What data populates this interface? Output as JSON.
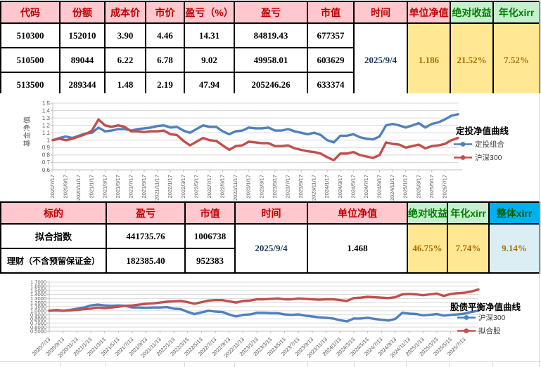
{
  "table1": {
    "headers": {
      "code": "代码",
      "shares": "份额",
      "cost": "成本价",
      "price": "市价",
      "pl_pct": "盈亏（%）",
      "pl": "盈亏",
      "mv": "市值",
      "time": "时间",
      "nav": "单位净值",
      "abs_return": "绝对收益",
      "xirr": "年化xirr"
    },
    "rows": [
      {
        "code": "510300",
        "shares": "152010",
        "cost": "3.90",
        "price": "4.46",
        "pl_pct": "14.31",
        "pl": "84819.43",
        "mv": "677357"
      },
      {
        "code": "510500",
        "shares": "89044",
        "cost": "6.22",
        "price": "6.78",
        "pl_pct": "9.02",
        "pl": "49958.01",
        "mv": "603629"
      },
      {
        "code": "513500",
        "shares": "289344",
        "cost": "1.48",
        "price": "2.19",
        "pl_pct": "47.94",
        "pl": "205246.26",
        "mv": "633374"
      }
    ],
    "time": "2025/9/4",
    "nav": "1.186",
    "abs_return": "21.52%",
    "xirr": "7.52%"
  },
  "table2": {
    "headers": {
      "target": "标的",
      "pl": "盈亏",
      "mv": "市值",
      "time": "时间",
      "nav": "单位净值",
      "abs_return": "绝对收益",
      "xirr": "年化xirr",
      "overall_xirr": "整体xirr"
    },
    "rows": [
      {
        "target": "拟合指数",
        "pl": "441735.76",
        "mv": "1006738"
      },
      {
        "target": "理财（不含预留保证金）",
        "pl": "182385.40",
        "mv": "952383"
      }
    ],
    "time": "2025/9/4",
    "nav": "1.468",
    "abs_return": "46.75%",
    "xirr": "7.74%",
    "overall_xirr": "9.14%"
  },
  "colors": {
    "header_pink": "#FFC7CE",
    "header_red_text": "#C00000",
    "green_bg": "#C6EFCE",
    "green_text": "#008000",
    "yellow_bg": "#FFE793",
    "yellow_text": "#A66E00",
    "blue_header_bg": "#00B0F0",
    "blue_cell_bg": "#DAEEF3",
    "line_blue": "#4F81BD",
    "line_red": "#C0504D",
    "grid_gray": "#D9D9D9",
    "axis_gray": "#BFBFBF",
    "tick_text": "#595959"
  },
  "chart_data": [
    {
      "type": "line",
      "title": "定投净值曲线",
      "ylabel": "基金净值",
      "ylim": [
        0.6,
        1.5
      ],
      "grid": true,
      "legend_position": "right",
      "ytick_values": [
        1.5,
        1.4,
        1.3,
        1.2,
        1.1,
        1.0,
        0.9,
        0.8,
        0.7,
        0.6
      ],
      "ytick_labels": [
        "1.5",
        "1.4",
        "1.3",
        "1.2",
        "1.1",
        "1",
        "0.9",
        "0.8",
        "0.7",
        "0.6"
      ],
      "categories": [
        "2020/7/17",
        "2020/9/17",
        "2020/11/17",
        "2021/1/17",
        "2021/3/17",
        "2021/5/17",
        "2021/7/17",
        "2021/9/17",
        "2021/11/17",
        "2022/1/17",
        "2022/3/17",
        "2022/5/17",
        "2022/7/17",
        "2022/9/17",
        "2022/11/17",
        "2023/1/17",
        "2023/3/17",
        "2023/5/17",
        "2023/7/17",
        "2023/9/17",
        "2023/11/17",
        "2024/1/17",
        "2024/3/17",
        "2024/5/17",
        "2024/7/17",
        "2024/9/17",
        "2024/11/17",
        "2025/1/17",
        "2025/3/17",
        "2025/5/17",
        "2025/7/17"
      ],
      "series": [
        {
          "name": "定投组合",
          "color": "#4F81BD",
          "values": [
            1.0,
            1.03,
            1.05,
            1.03,
            1.06,
            1.09,
            1.1,
            1.17,
            1.12,
            1.13,
            1.15,
            1.15,
            1.13,
            1.15,
            1.16,
            1.17,
            1.19,
            1.2,
            1.17,
            1.18,
            1.13,
            1.1,
            1.15,
            1.2,
            1.18,
            1.18,
            1.12,
            1.08,
            1.12,
            1.13,
            1.17,
            1.16,
            1.16,
            1.17,
            1.13,
            1.13,
            1.15,
            1.12,
            1.1,
            1.08,
            1.1,
            1.07,
            1.0,
            0.97,
            1.06,
            1.06,
            1.08,
            1.04,
            1.02,
            1.01,
            1.05,
            1.2,
            1.22,
            1.2,
            1.17,
            1.2,
            1.23,
            1.17,
            1.22,
            1.24,
            1.28,
            1.33,
            1.35
          ]
        },
        {
          "name": "沪深300",
          "color": "#C0504D",
          "values": [
            1.0,
            1.02,
            1.0,
            1.02,
            1.05,
            1.08,
            1.13,
            1.28,
            1.2,
            1.18,
            1.2,
            1.18,
            1.12,
            1.12,
            1.11,
            1.12,
            1.12,
            1.13,
            1.08,
            1.07,
            0.99,
            0.93,
            0.98,
            1.03,
            1.0,
            0.99,
            0.93,
            0.87,
            0.92,
            0.93,
            0.98,
            0.97,
            0.96,
            0.96,
            0.92,
            0.92,
            0.93,
            0.89,
            0.87,
            0.85,
            0.84,
            0.82,
            0.77,
            0.73,
            0.82,
            0.82,
            0.84,
            0.8,
            0.78,
            0.76,
            0.8,
            0.97,
            0.95,
            0.94,
            0.9,
            0.92,
            0.94,
            0.89,
            0.92,
            0.93,
            0.95,
            1.0,
            1.03
          ]
        }
      ]
    },
    {
      "type": "line",
      "title": "股债平衡净值曲线",
      "ylabel": "",
      "ylim": [
        0.5,
        1.7
      ],
      "grid": true,
      "legend_position": "right",
      "ytick_values": [
        1.7,
        1.6,
        1.5,
        1.4,
        1.3,
        1.2,
        1.1,
        1.0,
        0.9,
        0.8,
        0.7,
        0.6,
        0.5
      ],
      "ytick_labels": [
        "1.7000",
        "1.6000",
        "1.5000",
        "1.4000",
        "1.3000",
        "1.2000",
        "1.1000",
        "1.0000",
        "0.9000",
        "0.8000",
        "0.7000",
        "0.6000",
        "0.5000"
      ],
      "categories": [
        "2020/7/13",
        "2020/9/13",
        "2020/11/13",
        "2021/1/13",
        "2021/3/13",
        "2021/5/13",
        "2021/7/13",
        "2021/9/13",
        "2021/11/13",
        "2022/1/13",
        "2022/3/13",
        "2022/5/13",
        "2022/7/13",
        "2022/9/13",
        "2022/11/13",
        "2023/1/13",
        "2023/3/13",
        "2023/5/13",
        "2023/7/13",
        "2023/9/13",
        "2023/11/13",
        "2024/1/13",
        "2024/3/13",
        "2024/5/13",
        "2024/7/13",
        "2024/9/13",
        "2024/11/13",
        "2025/1/13",
        "2025/3/13",
        "2025/5/13",
        "2025/7/13"
      ],
      "series": [
        {
          "name": "沪深300",
          "color": "#4F81BD",
          "values": [
            1.0,
            1.02,
            1.0,
            1.02,
            1.05,
            1.08,
            1.13,
            1.15,
            1.13,
            1.12,
            1.13,
            1.12,
            1.08,
            1.08,
            1.07,
            1.08,
            1.08,
            1.09,
            1.05,
            1.04,
            0.97,
            0.92,
            0.96,
            1.0,
            0.98,
            0.97,
            0.91,
            0.86,
            0.9,
            0.91,
            0.95,
            0.95,
            0.94,
            0.94,
            0.91,
            0.9,
            0.91,
            0.88,
            0.86,
            0.84,
            0.83,
            0.81,
            0.77,
            0.74,
            0.81,
            0.81,
            0.83,
            0.8,
            0.78,
            0.76,
            0.8,
            0.95,
            0.93,
            0.92,
            0.89,
            0.9,
            0.92,
            0.88,
            0.9,
            0.91,
            0.93,
            0.97,
            1.0
          ]
        },
        {
          "name": "拟合股",
          "color": "#C0504D",
          "values": [
            1.0,
            1.01,
            1.0,
            1.01,
            1.02,
            1.04,
            1.05,
            1.08,
            1.06,
            1.08,
            1.1,
            1.12,
            1.13,
            1.15,
            1.17,
            1.18,
            1.2,
            1.22,
            1.23,
            1.24,
            1.21,
            1.17,
            1.21,
            1.25,
            1.26,
            1.26,
            1.23,
            1.2,
            1.24,
            1.25,
            1.28,
            1.28,
            1.29,
            1.3,
            1.28,
            1.28,
            1.3,
            1.29,
            1.28,
            1.27,
            1.28,
            1.28,
            1.26,
            1.24,
            1.31,
            1.32,
            1.34,
            1.33,
            1.32,
            1.31,
            1.33,
            1.4,
            1.41,
            1.4,
            1.38,
            1.4,
            1.42,
            1.36,
            1.41,
            1.43,
            1.44,
            1.47,
            1.52
          ]
        }
      ]
    }
  ]
}
